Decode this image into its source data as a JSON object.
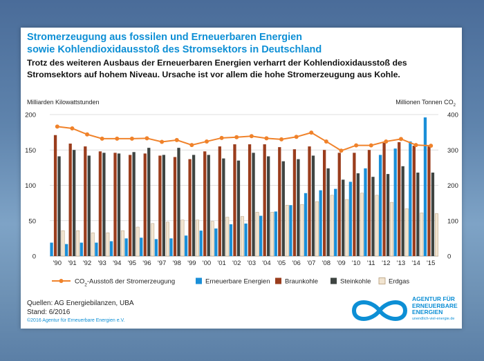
{
  "chart_data": {
    "type": "bar+line",
    "title": [
      "Stromerzeugung aus fossilen und Erneuerbaren Energien",
      "sowie Kohlendioxidausstoß des Stromsektors in Deutschland"
    ],
    "subtitle": [
      "Trotz des weiteren Ausbaus der Erneuerbaren Energien verharrt der Kohlendioxidausstoß des",
      "Stromsektors auf hohem Niveau. Ursache ist vor allem die hohe Stromerzeugung aus Kohle."
    ],
    "ylabel_left": "Milliarden Kilowattstunden",
    "ylabel_right": "Millionen Tonnen CO",
    "ylabel_right_sub": "2",
    "ylim_left": [
      0,
      200
    ],
    "yticks_left": [
      "0",
      "50",
      "100",
      "150",
      "200"
    ],
    "ylim_right": [
      0,
      400
    ],
    "yticks_right": [
      "0",
      "100",
      "200",
      "300",
      "400"
    ],
    "categories": [
      "'90",
      "'91",
      "'92",
      "'93",
      "'94",
      "'95",
      "'96",
      "'97",
      "'98",
      "'99",
      "'00",
      "'01",
      "'02",
      "'03",
      "'04",
      "'05",
      "'06",
      "'07",
      "'08",
      "'09",
      "'10",
      "'11",
      "'12",
      "'13",
      "'14",
      "'15"
    ],
    "series": [
      {
        "name": "Erneuerbare Energien",
        "color": "#1a8fd8",
        "axis": "left",
        "values": [
          19,
          17,
          19,
          19,
          21,
          25,
          26,
          24,
          25,
          29,
          36,
          39,
          45,
          46,
          57,
          63,
          72,
          89,
          93,
          95,
          105,
          124,
          143,
          152,
          162,
          196
        ]
      },
      {
        "name": "Braunkohle",
        "color": "#9a3d1d",
        "axis": "left",
        "values": [
          171,
          159,
          155,
          148,
          146,
          143,
          145,
          142,
          140,
          137,
          148,
          155,
          158,
          158,
          158,
          154,
          151,
          155,
          150,
          146,
          146,
          150,
          160,
          161,
          156,
          155
        ]
      },
      {
        "name": "Steinkohle",
        "color": "#3e4441",
        "axis": "left",
        "values": [
          141,
          150,
          142,
          146,
          145,
          147,
          153,
          143,
          153,
          143,
          143,
          138,
          135,
          146,
          141,
          134,
          137,
          142,
          124,
          108,
          117,
          112,
          116,
          127,
          118,
          118
        ]
      },
      {
        "name": "Erdgas",
        "color": "#f1e4d0",
        "axis": "left",
        "values": [
          36,
          36,
          33,
          33,
          36,
          41,
          46,
          48,
          51,
          51,
          49,
          55,
          56,
          62,
          62,
          72,
          73,
          77,
          86,
          80,
          89,
          86,
          76,
          67,
          61,
          60
        ]
      },
      {
        "name": "CO",
        "name_sub": "2",
        "name_suffix": "-Ausstoß der Stromerzeugung",
        "color": "#f0822a",
        "axis": "right",
        "type": "line",
        "values": [
          366,
          361,
          344,
          332,
          332,
          332,
          333,
          323,
          328,
          314,
          324,
          334,
          336,
          339,
          333,
          330,
          337,
          349,
          324,
          298,
          313,
          313,
          324,
          331,
          314,
          312
        ]
      }
    ]
  },
  "footer": {
    "sources": "Quellen: AG Energiebilanzen, UBA",
    "stand": "Stand: 6/2016",
    "copyright": "©2016 Agentur für Erneuerbare Energien e.V."
  },
  "logo": {
    "lines": [
      "AGENTUR FÜR",
      "ERNEUERBARE",
      "ENERGIEN"
    ],
    "url": "unendlich-viel-energie.de",
    "color": "#0d8fd5"
  }
}
